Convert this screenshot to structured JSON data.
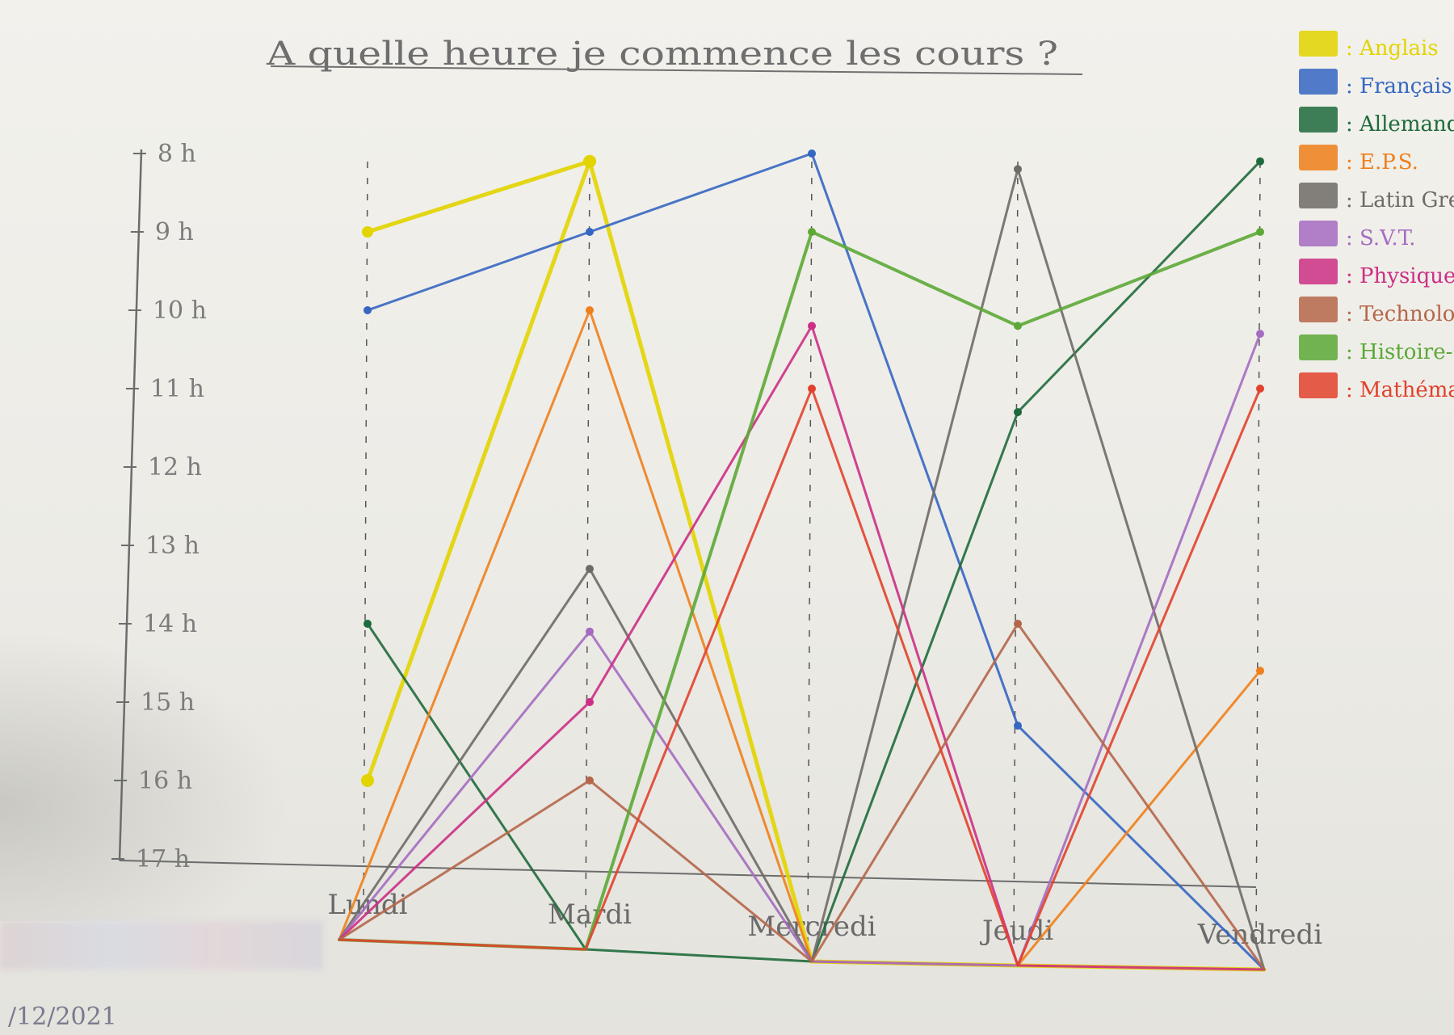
{
  "chart_data": {
    "type": "line",
    "title": "A quelle heure je commence les cours ?",
    "categories": [
      "Lundi",
      "Mardi",
      "Mercredi",
      "Jeudi",
      "Vendredi"
    ],
    "y_ticks": [
      "8 h",
      "9 h",
      "10 h",
      "11 h",
      "12 h",
      "13 h",
      "14 h",
      "15 h",
      "16 h",
      "17 h"
    ],
    "y_inverted": true,
    "ylim": [
      8,
      17
    ],
    "legend_position": "top-right",
    "series": [
      {
        "name": "Anglais",
        "color": "#e2d400",
        "values": [
          16.0,
          8.1,
          null,
          null,
          null
        ],
        "extra": [
          {
            "from": 0,
            "value": 9.0
          }
        ]
      },
      {
        "name": "Français",
        "color": "#3566c2",
        "values": [
          10.0,
          9.0,
          8.0,
          15.3,
          null
        ]
      },
      {
        "name": "Allemand",
        "color": "#1f6a3c",
        "values": [
          14.0,
          null,
          null,
          11.3,
          8.1
        ]
      },
      {
        "name": "E.P.S.",
        "color": "#ef7f1a",
        "values": [
          null,
          10.0,
          null,
          null,
          14.6
        ]
      },
      {
        "name": "Latin Grec",
        "color": "#6f6a66",
        "values": [
          null,
          13.3,
          null,
          8.2,
          null
        ]
      },
      {
        "name": "S.V.T.",
        "color": "#a56bc1",
        "values": [
          null,
          14.1,
          null,
          null,
          10.3
        ]
      },
      {
        "name": "Physique",
        "color": "#cc2f85",
        "values": [
          null,
          15.0,
          10.2,
          null,
          null
        ]
      },
      {
        "name": "Technologie",
        "color": "#b5664a",
        "values": [
          null,
          16.0,
          null,
          14.0,
          null
        ]
      },
      {
        "name": "Histoire-Géo",
        "color": "#5ca836",
        "values": [
          null,
          null,
          9.0,
          10.2,
          9.0
        ]
      },
      {
        "name": "Mathématique",
        "color": "#e2412c",
        "values": [
          null,
          null,
          11.0,
          null,
          11.0
        ]
      }
    ]
  },
  "date_text": "/12/2021"
}
